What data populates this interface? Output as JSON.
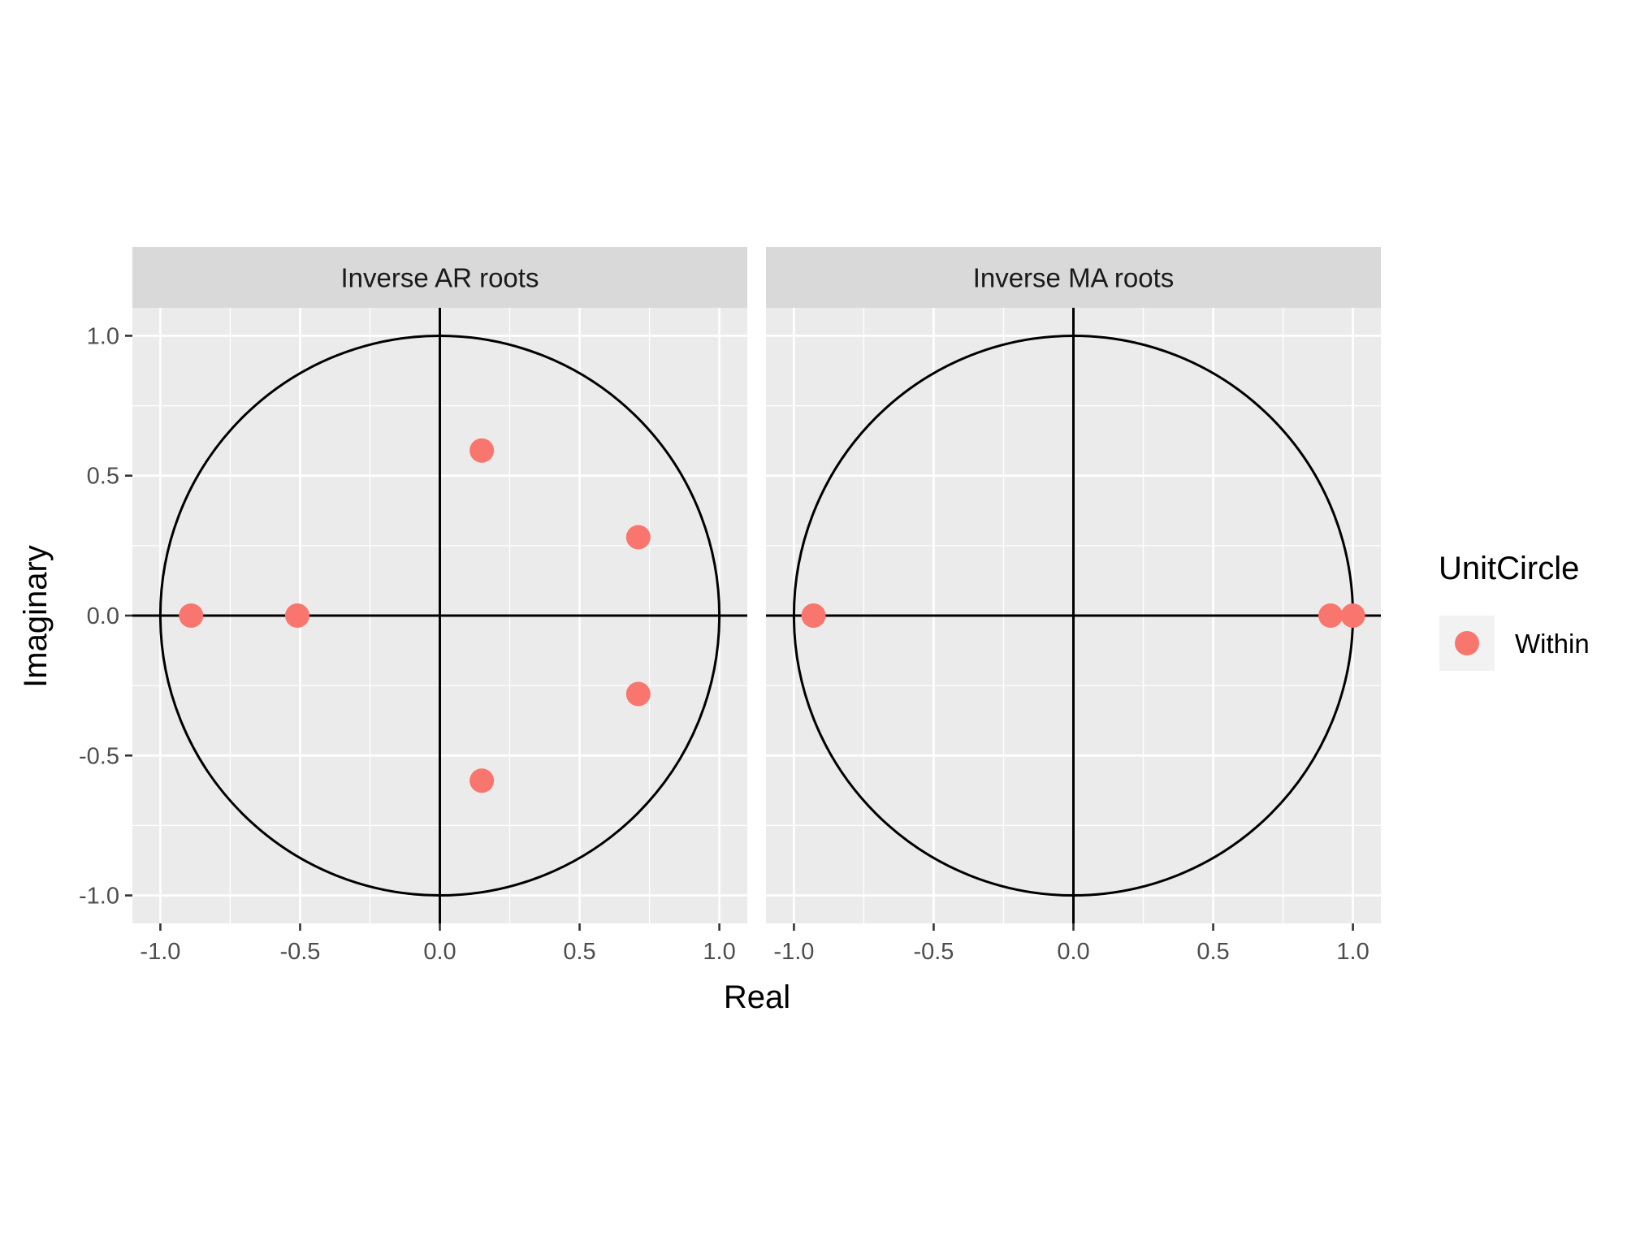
{
  "chart_data": {
    "type": "scatter",
    "xlabel": "Real",
    "ylabel": "Imaginary",
    "xlim": [
      -1.1,
      1.1
    ],
    "ylim": [
      -1.1,
      1.1
    ],
    "x_ticks": [
      "-1.0",
      "-0.5",
      "0.0",
      "0.5",
      "1.0"
    ],
    "y_ticks": [
      "-1.0",
      "-0.5",
      "0.0",
      "0.5",
      "1.0"
    ],
    "tick_values": [
      -1.0,
      -0.5,
      0.0,
      0.5,
      1.0
    ],
    "grid": true,
    "unit_circle": true,
    "legend": {
      "title": "UnitCircle",
      "placement": "right",
      "entries": [
        {
          "label": "Within",
          "color": "#F8766D"
        }
      ]
    },
    "facets": [
      {
        "label": "Inverse AR roots",
        "points": [
          {
            "x": -0.89,
            "y": 0.0
          },
          {
            "x": -0.51,
            "y": 0.0
          },
          {
            "x": 0.15,
            "y": 0.59
          },
          {
            "x": 0.15,
            "y": -0.59
          },
          {
            "x": 0.71,
            "y": 0.28
          },
          {
            "x": 0.71,
            "y": -0.28
          }
        ]
      },
      {
        "label": "Inverse MA roots",
        "points": [
          {
            "x": -0.93,
            "y": 0.0
          },
          {
            "x": 0.92,
            "y": 0.0
          },
          {
            "x": 1.0,
            "y": 0.0
          }
        ]
      }
    ],
    "colors": {
      "point": "#F8766D",
      "panel": "#EBEBEB",
      "strip": "#D9D9D9",
      "grid": "#FFFFFF"
    }
  }
}
